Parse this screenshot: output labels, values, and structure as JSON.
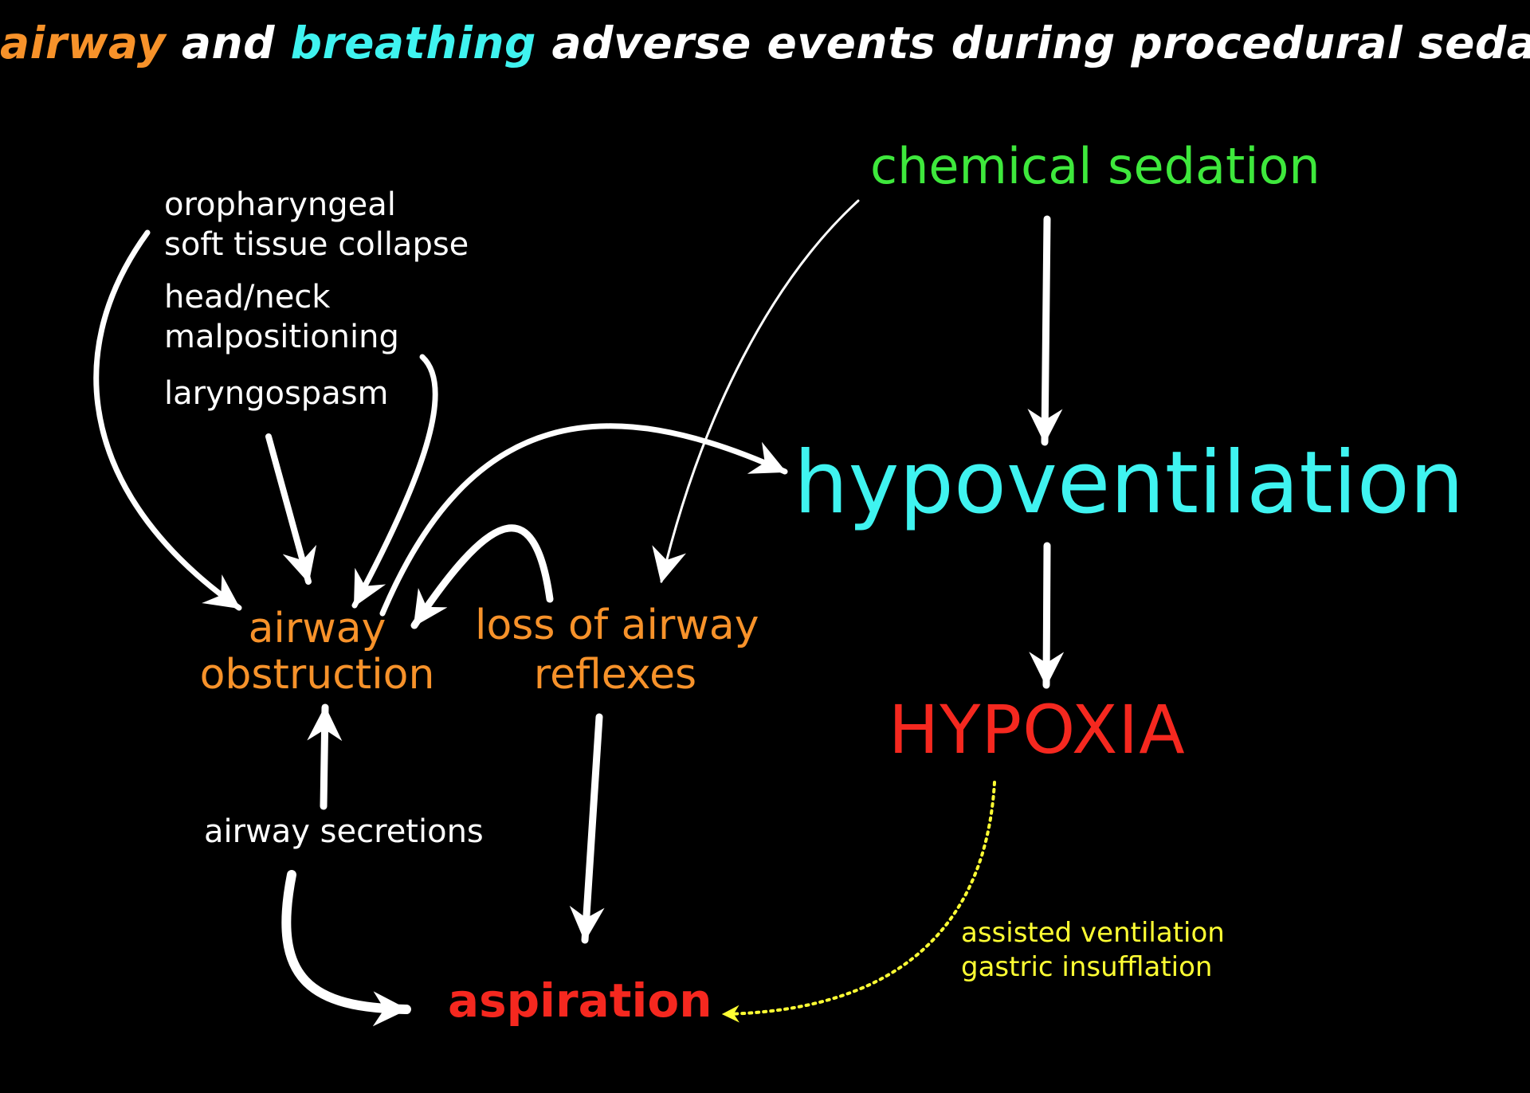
{
  "colors": {
    "background": "#000000",
    "white": "#ffffff",
    "orange": "#f7922a",
    "cyan": "#3ff3f0",
    "green": "#3ee83c",
    "red": "#f5281f",
    "yellow": "#ffff33"
  },
  "title": {
    "word_airway": "airway",
    "word_and": " and ",
    "word_breathing": "breathing",
    "rest": " adverse events during procedural sedation"
  },
  "nodes": {
    "chemical_sedation": "chemical sedation",
    "hypoventilation": "hypoventilation",
    "hypoxia": "HYPOXIA",
    "aspiration": "aspiration",
    "airway_obstruction": [
      "airway",
      "obstruction"
    ],
    "loss_of_airway_reflexes": [
      "loss of airway",
      "reflexes"
    ],
    "airway_secretions": "airway secretions",
    "assisted_ventilation_note": [
      "assisted ventilation",
      "gastric insufflation"
    ]
  },
  "causes": {
    "oropharyngeal": [
      "oropharyngeal",
      "soft tissue collapse"
    ],
    "head_neck": [
      "head/neck",
      "malpositioning"
    ],
    "laryngospasm": "laryngospasm"
  }
}
